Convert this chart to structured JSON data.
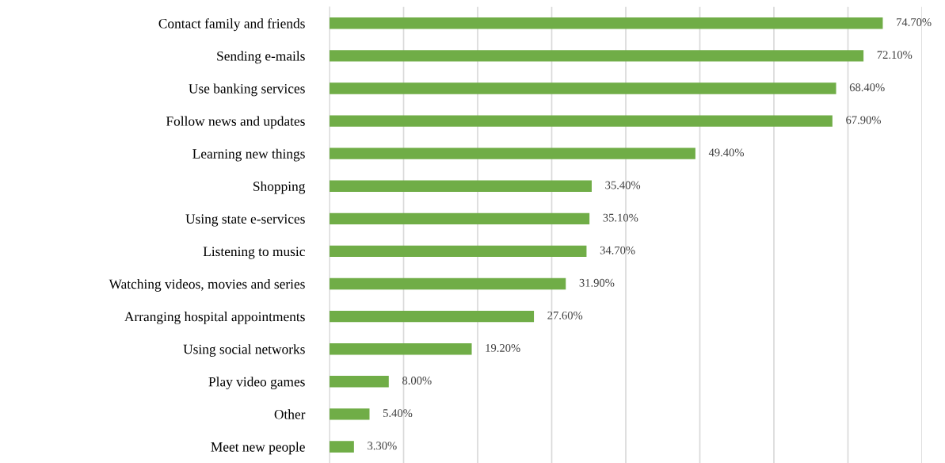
{
  "chart_data": {
    "type": "bar",
    "orientation": "horizontal",
    "categories": [
      "Contact family and friends",
      "Sending e-mails",
      "Use banking services",
      "Follow news and updates",
      "Learning new things",
      "Shopping",
      "Using state e-services",
      "Listening to music",
      "Watching videos, movies and series",
      "Arranging hospital appointments",
      "Using social networks",
      "Play video games",
      "Other",
      "Meet new people"
    ],
    "values": [
      74.7,
      72.1,
      68.4,
      67.9,
      49.4,
      35.4,
      35.1,
      34.7,
      31.9,
      27.6,
      19.2,
      8.0,
      5.4,
      3.3
    ],
    "value_labels": [
      "74.70%",
      "72.10%",
      "68.40%",
      "67.90%",
      "49.40%",
      "35.40%",
      "35.10%",
      "34.70%",
      "31.90%",
      "27.60%",
      "19.20%",
      "8.00%",
      "5.40%",
      "3.30%"
    ],
    "color": "#70ad47",
    "xlim": [
      0,
      80
    ],
    "xticks": [
      {
        "value": 0,
        "label": null
      },
      {
        "value": 10,
        "label": null
      },
      {
        "value": 20,
        "label": null
      },
      {
        "value": 30,
        "label": null
      },
      {
        "value": 40,
        "label": null
      },
      {
        "value": 50,
        "label": null
      },
      {
        "value": 60,
        "label": null
      },
      {
        "value": 70,
        "label": null
      },
      {
        "value": 80,
        "label": null
      }
    ],
    "tick_labels": "y",
    "grid": "x",
    "legend": false
  }
}
